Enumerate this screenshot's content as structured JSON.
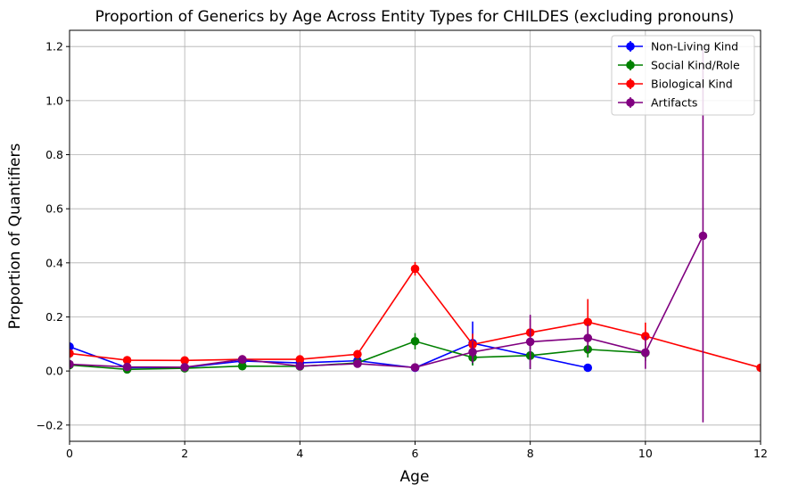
{
  "chart_data": {
    "type": "line",
    "title": "Proportion of Generics by Age Across Entity Types for CHILDES (excluding pronouns)",
    "xlabel": "Age",
    "ylabel": "Proportion of Quantifiers",
    "xlim": [
      0,
      12
    ],
    "ylim": [
      -0.26,
      1.26
    ],
    "xticks": [
      0,
      2,
      4,
      6,
      8,
      10,
      12
    ],
    "yticks": [
      -0.2,
      0.0,
      0.2,
      0.4,
      0.6,
      0.8,
      1.0,
      1.2
    ],
    "xtick_labels": [
      "0",
      "2",
      "4",
      "6",
      "8",
      "10",
      "12"
    ],
    "ytick_labels": [
      "−0.2",
      "0.0",
      "0.2",
      "0.4",
      "0.6",
      "0.8",
      "1.0",
      "1.2"
    ],
    "grid": true,
    "legend_position": "top-right",
    "series": [
      {
        "name": "Non-Living Kind",
        "color": "#0000ff",
        "x": [
          0,
          1,
          2,
          3,
          4,
          5,
          6,
          7,
          8,
          9
        ],
        "y": [
          0.09,
          0.012,
          0.013,
          0.037,
          0.03,
          0.038,
          0.012,
          0.103,
          0.057,
          0.012
        ],
        "err": [
          0.01,
          0.004,
          0.004,
          0.006,
          0.006,
          0.008,
          0.006,
          0.08,
          0.05,
          0.012
        ]
      },
      {
        "name": "Social Kind/Role",
        "color": "#008000",
        "x": [
          0,
          1,
          2,
          3,
          4,
          5,
          6,
          7,
          8,
          9,
          10
        ],
        "y": [
          0.022,
          0.006,
          0.01,
          0.018,
          0.017,
          0.03,
          0.11,
          0.05,
          0.057,
          0.08,
          0.067
        ],
        "err": [
          0.005,
          0.003,
          0.003,
          0.005,
          0.005,
          0.008,
          0.03,
          0.03,
          0.05,
          0.03,
          0.03
        ]
      },
      {
        "name": "Biological Kind",
        "color": "#ff0000",
        "x": [
          0,
          1,
          2,
          3,
          4,
          5,
          6,
          7,
          8,
          9,
          10,
          12
        ],
        "y": [
          0.065,
          0.04,
          0.039,
          0.043,
          0.043,
          0.062,
          0.378,
          0.098,
          0.142,
          0.181,
          0.129,
          0.012
        ],
        "err": [
          0.008,
          0.005,
          0.004,
          0.006,
          0.006,
          0.01,
          0.025,
          0.04,
          0.05,
          0.085,
          0.05,
          0.01
        ]
      },
      {
        "name": "Artifacts",
        "color": "#800080",
        "x": [
          0,
          1,
          2,
          3,
          4,
          5,
          6,
          7,
          8,
          9,
          10,
          11
        ],
        "y": [
          0.025,
          0.015,
          0.014,
          0.043,
          0.018,
          0.027,
          0.013,
          0.07,
          0.108,
          0.122,
          0.068,
          0.5
        ],
        "err": [
          0.005,
          0.004,
          0.004,
          0.008,
          0.005,
          0.007,
          0.005,
          0.04,
          0.1,
          0.05,
          0.06,
          0.69
        ]
      }
    ]
  }
}
